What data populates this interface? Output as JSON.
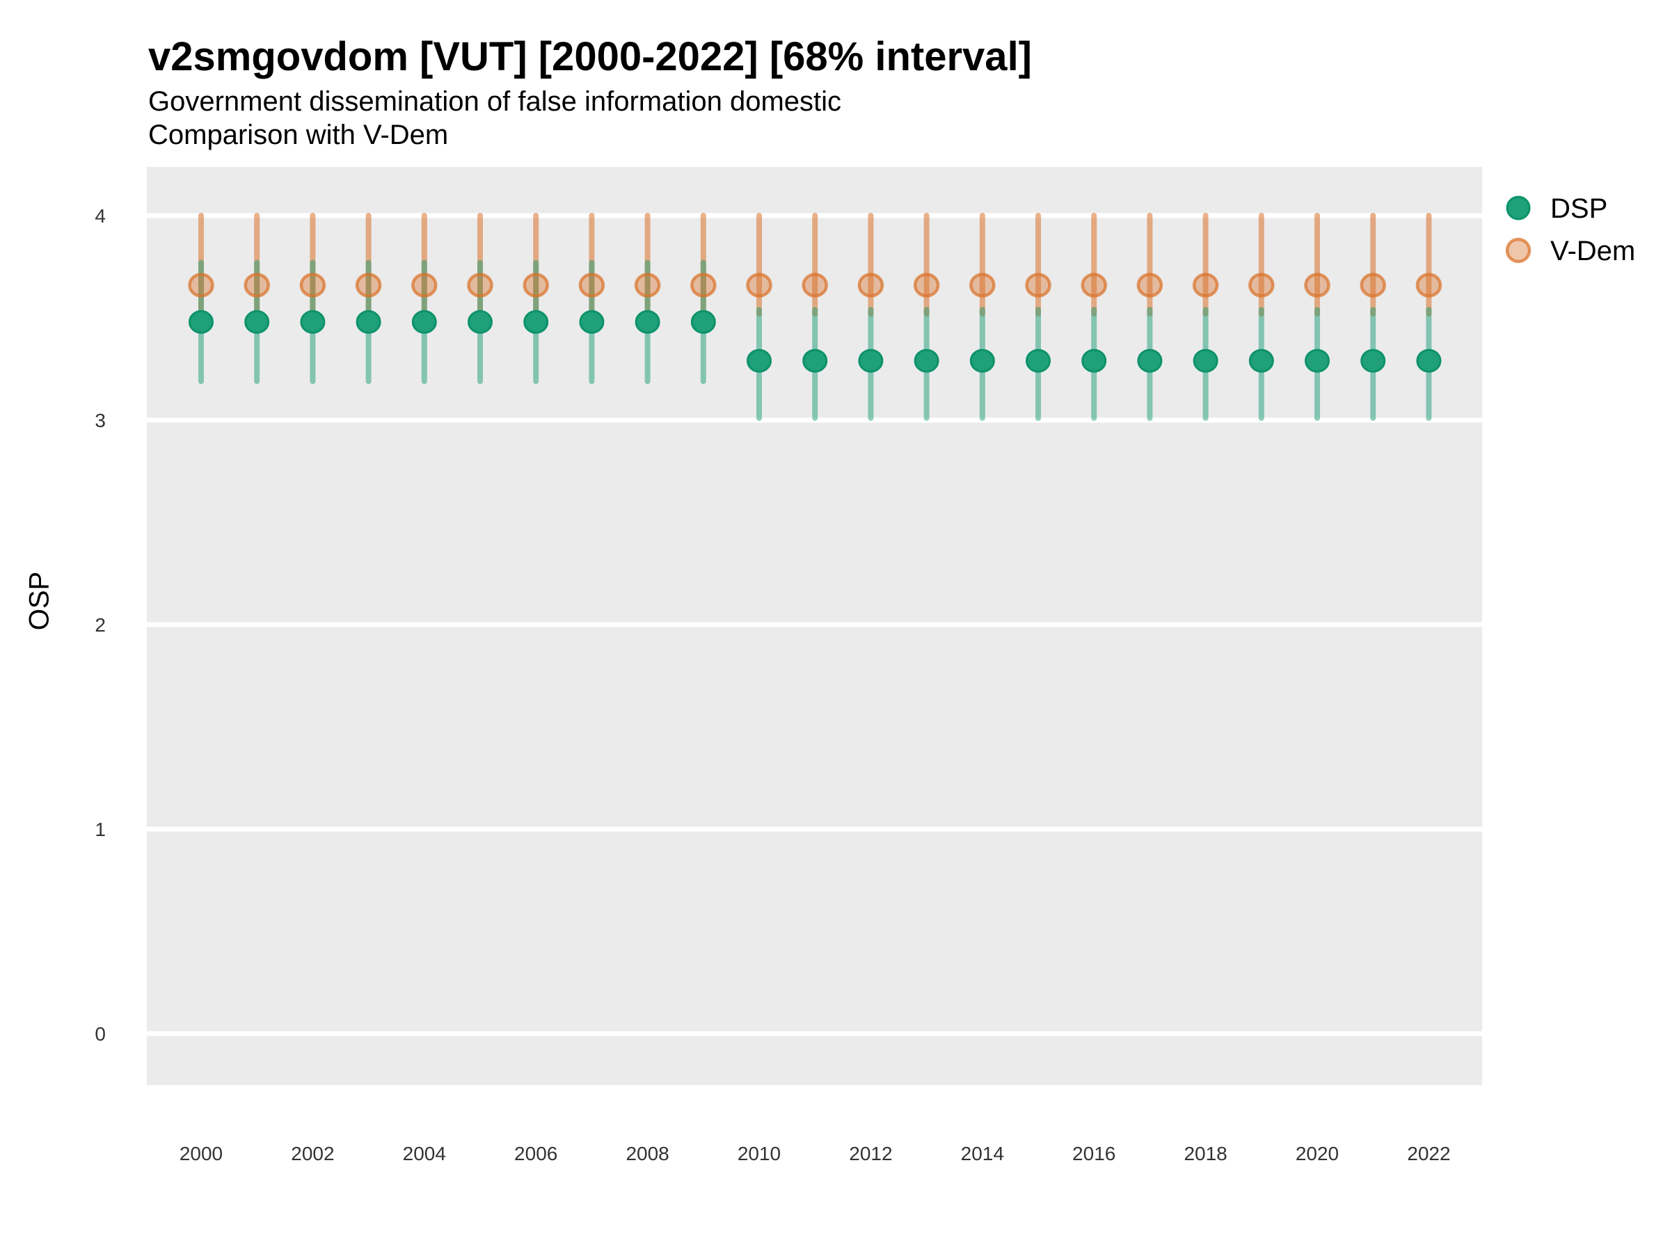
{
  "header": {
    "title": "v2smgovdom [VUT] [2000-2022] [68% interval]",
    "subtitle_line1": "Government dissemination of false information domestic",
    "subtitle_line2": "Comparison with V-Dem"
  },
  "axes": {
    "y_label": "OSP",
    "y_ticks": [
      4,
      3,
      2,
      1,
      0
    ],
    "x_ticks": [
      2000,
      2002,
      2004,
      2006,
      2008,
      2010,
      2012,
      2014,
      2016,
      2018,
      2020,
      2022
    ]
  },
  "legend": {
    "items": [
      {
        "label": "DSP",
        "color": "#1FA078"
      },
      {
        "label": "V-Dem",
        "color": "#D9712A"
      }
    ],
    "position": "right-top"
  },
  "colors": {
    "panel_bg": "#EBEBEB",
    "grid": "#FFFFFF",
    "dsp_line": "rgba(27,158,119,0.5)",
    "dsp_dot_fill": "#1FA078",
    "dsp_dot_stroke": "#0E9269",
    "vdem_line": "rgba(217,113,42,0.55)",
    "vdem_dot_fill": "rgba(217,113,42,0.40)",
    "vdem_dot_stroke": "rgba(217,113,42,0.72)"
  },
  "chart_data": {
    "type": "scatter",
    "subtype": "pointrange",
    "title": "v2smgovdom [VUT] [2000-2022] [68% interval]",
    "subtitle": "Government dissemination of false information domestic / Comparison with V-Dem",
    "xlabel": "",
    "ylabel": "OSP",
    "ylim": [
      -0.25,
      4.24
    ],
    "xlim": [
      1999.05,
      2022.95
    ],
    "grid": "major-horizontal-only",
    "legend_position": "right-top",
    "interval_level": "68%",
    "x": [
      2000,
      2001,
      2002,
      2003,
      2004,
      2005,
      2006,
      2007,
      2008,
      2009,
      2010,
      2011,
      2012,
      2013,
      2014,
      2015,
      2016,
      2017,
      2018,
      2019,
      2020,
      2021,
      2022
    ],
    "series": [
      {
        "name": "DSP",
        "estimate": [
          3.48,
          3.48,
          3.48,
          3.48,
          3.48,
          3.48,
          3.48,
          3.48,
          3.48,
          3.48,
          3.29,
          3.29,
          3.29,
          3.29,
          3.29,
          3.29,
          3.29,
          3.29,
          3.29,
          3.29,
          3.29,
          3.29,
          3.29
        ],
        "lower": [
          3.19,
          3.19,
          3.19,
          3.19,
          3.19,
          3.19,
          3.19,
          3.19,
          3.19,
          3.19,
          3.01,
          3.01,
          3.01,
          3.01,
          3.01,
          3.01,
          3.01,
          3.01,
          3.01,
          3.01,
          3.01,
          3.01,
          3.01
        ],
        "upper": [
          3.77,
          3.77,
          3.77,
          3.77,
          3.77,
          3.77,
          3.77,
          3.77,
          3.77,
          3.77,
          3.54,
          3.54,
          3.54,
          3.54,
          3.54,
          3.54,
          3.54,
          3.54,
          3.54,
          3.54,
          3.54,
          3.54,
          3.54
        ]
      },
      {
        "name": "V-Dem",
        "estimate": [
          3.66,
          3.66,
          3.66,
          3.66,
          3.66,
          3.66,
          3.66,
          3.66,
          3.66,
          3.66,
          3.66,
          3.66,
          3.66,
          3.66,
          3.66,
          3.66,
          3.66,
          3.66,
          3.66,
          3.66,
          3.66,
          3.66,
          3.66
        ],
        "lower": [
          3.52,
          3.52,
          3.52,
          3.52,
          3.52,
          3.52,
          3.52,
          3.52,
          3.52,
          3.52,
          3.52,
          3.52,
          3.52,
          3.52,
          3.52,
          3.52,
          3.52,
          3.52,
          3.52,
          3.52,
          3.52,
          3.52,
          3.52
        ],
        "upper": [
          4.0,
          4.0,
          4.0,
          4.0,
          4.0,
          4.0,
          4.0,
          4.0,
          4.0,
          4.0,
          4.0,
          4.0,
          4.0,
          4.0,
          4.0,
          4.0,
          4.0,
          4.0,
          4.0,
          4.0,
          4.0,
          4.0,
          4.0
        ]
      }
    ]
  }
}
